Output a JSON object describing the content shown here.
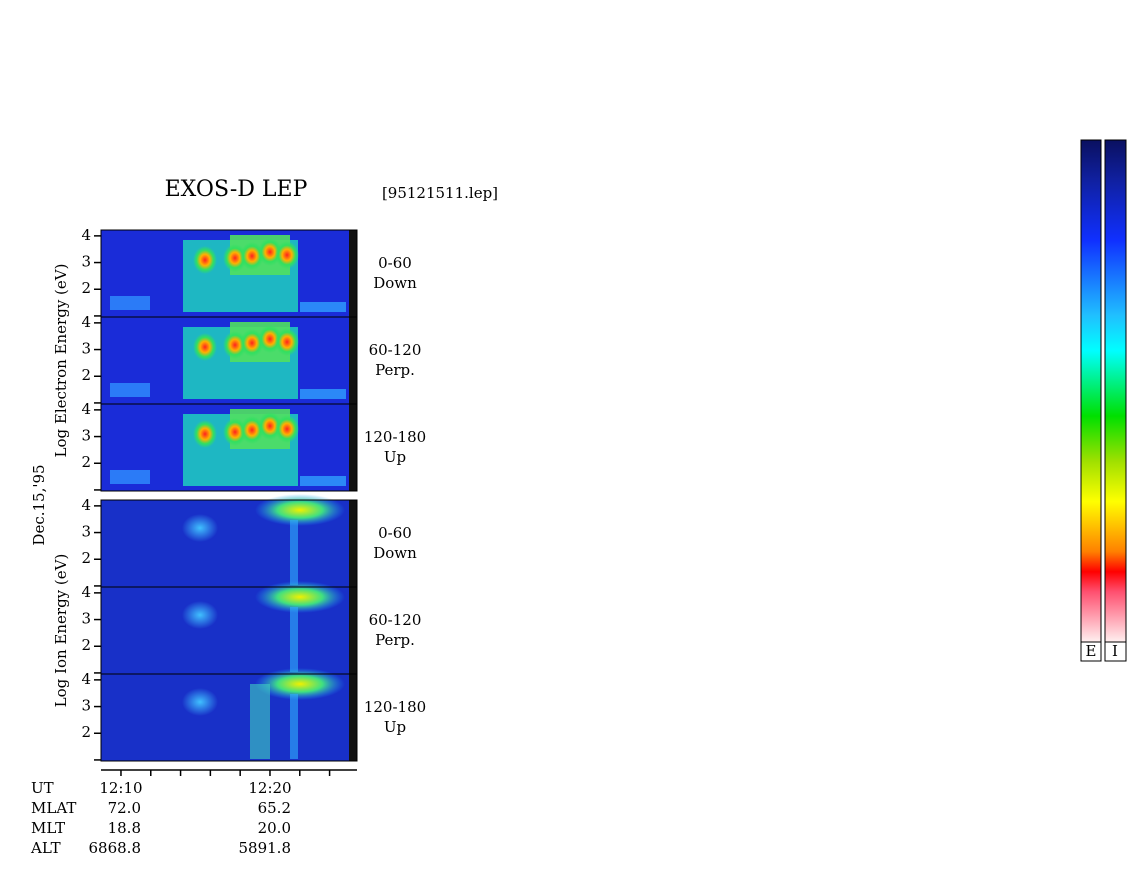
{
  "chart_data": {
    "type": "spectrogram",
    "title": "EXOS-D LEP",
    "file_label": "[95121511.lep]",
    "date_label": "Dec.15,'95",
    "xlim": [
      728.66,
      745.84
    ],
    "xticks": [
      {
        "value": 730,
        "label": "12:10"
      },
      {
        "value": 732,
        "label": null
      },
      {
        "value": 734,
        "label": null
      },
      {
        "value": 736,
        "label": null
      },
      {
        "value": 738,
        "label": null
      },
      {
        "value": 740,
        "label": "12:20"
      },
      {
        "value": 742,
        "label": null
      },
      {
        "value": 744,
        "label": null
      }
    ],
    "ylim": [
      0.96,
      4.22
    ],
    "yticks": [
      {
        "value": 1,
        "label": null
      },
      2,
      3,
      4
    ],
    "groups": [
      {
        "ylabel": "Log Electron Energy (eV)",
        "panels": [
          {
            "lines": [
              "0-60",
              "Down"
            ]
          },
          {
            "lines": [
              "60-120",
              "Perp."
            ]
          },
          {
            "lines": [
              "120-180",
              "Up"
            ]
          }
        ]
      },
      {
        "ylabel": "Log Ion Energy (eV)",
        "panels": [
          {
            "lines": [
              "0-60",
              "Down"
            ]
          },
          {
            "lines": [
              "60-120",
              "Perp."
            ]
          },
          {
            "lines": [
              "120-180",
              "Up"
            ]
          }
        ]
      }
    ],
    "colorbar_labels": [
      "E",
      "I"
    ]
  },
  "ephemeris": {
    "labels": [
      "UT",
      "MLAT",
      "MLT",
      "ALT"
    ],
    "rows": [
      [
        "72.0",
        "65.2"
      ],
      [
        "18.8",
        "20.0"
      ],
      [
        "6868.8",
        "5891.8"
      ]
    ]
  }
}
